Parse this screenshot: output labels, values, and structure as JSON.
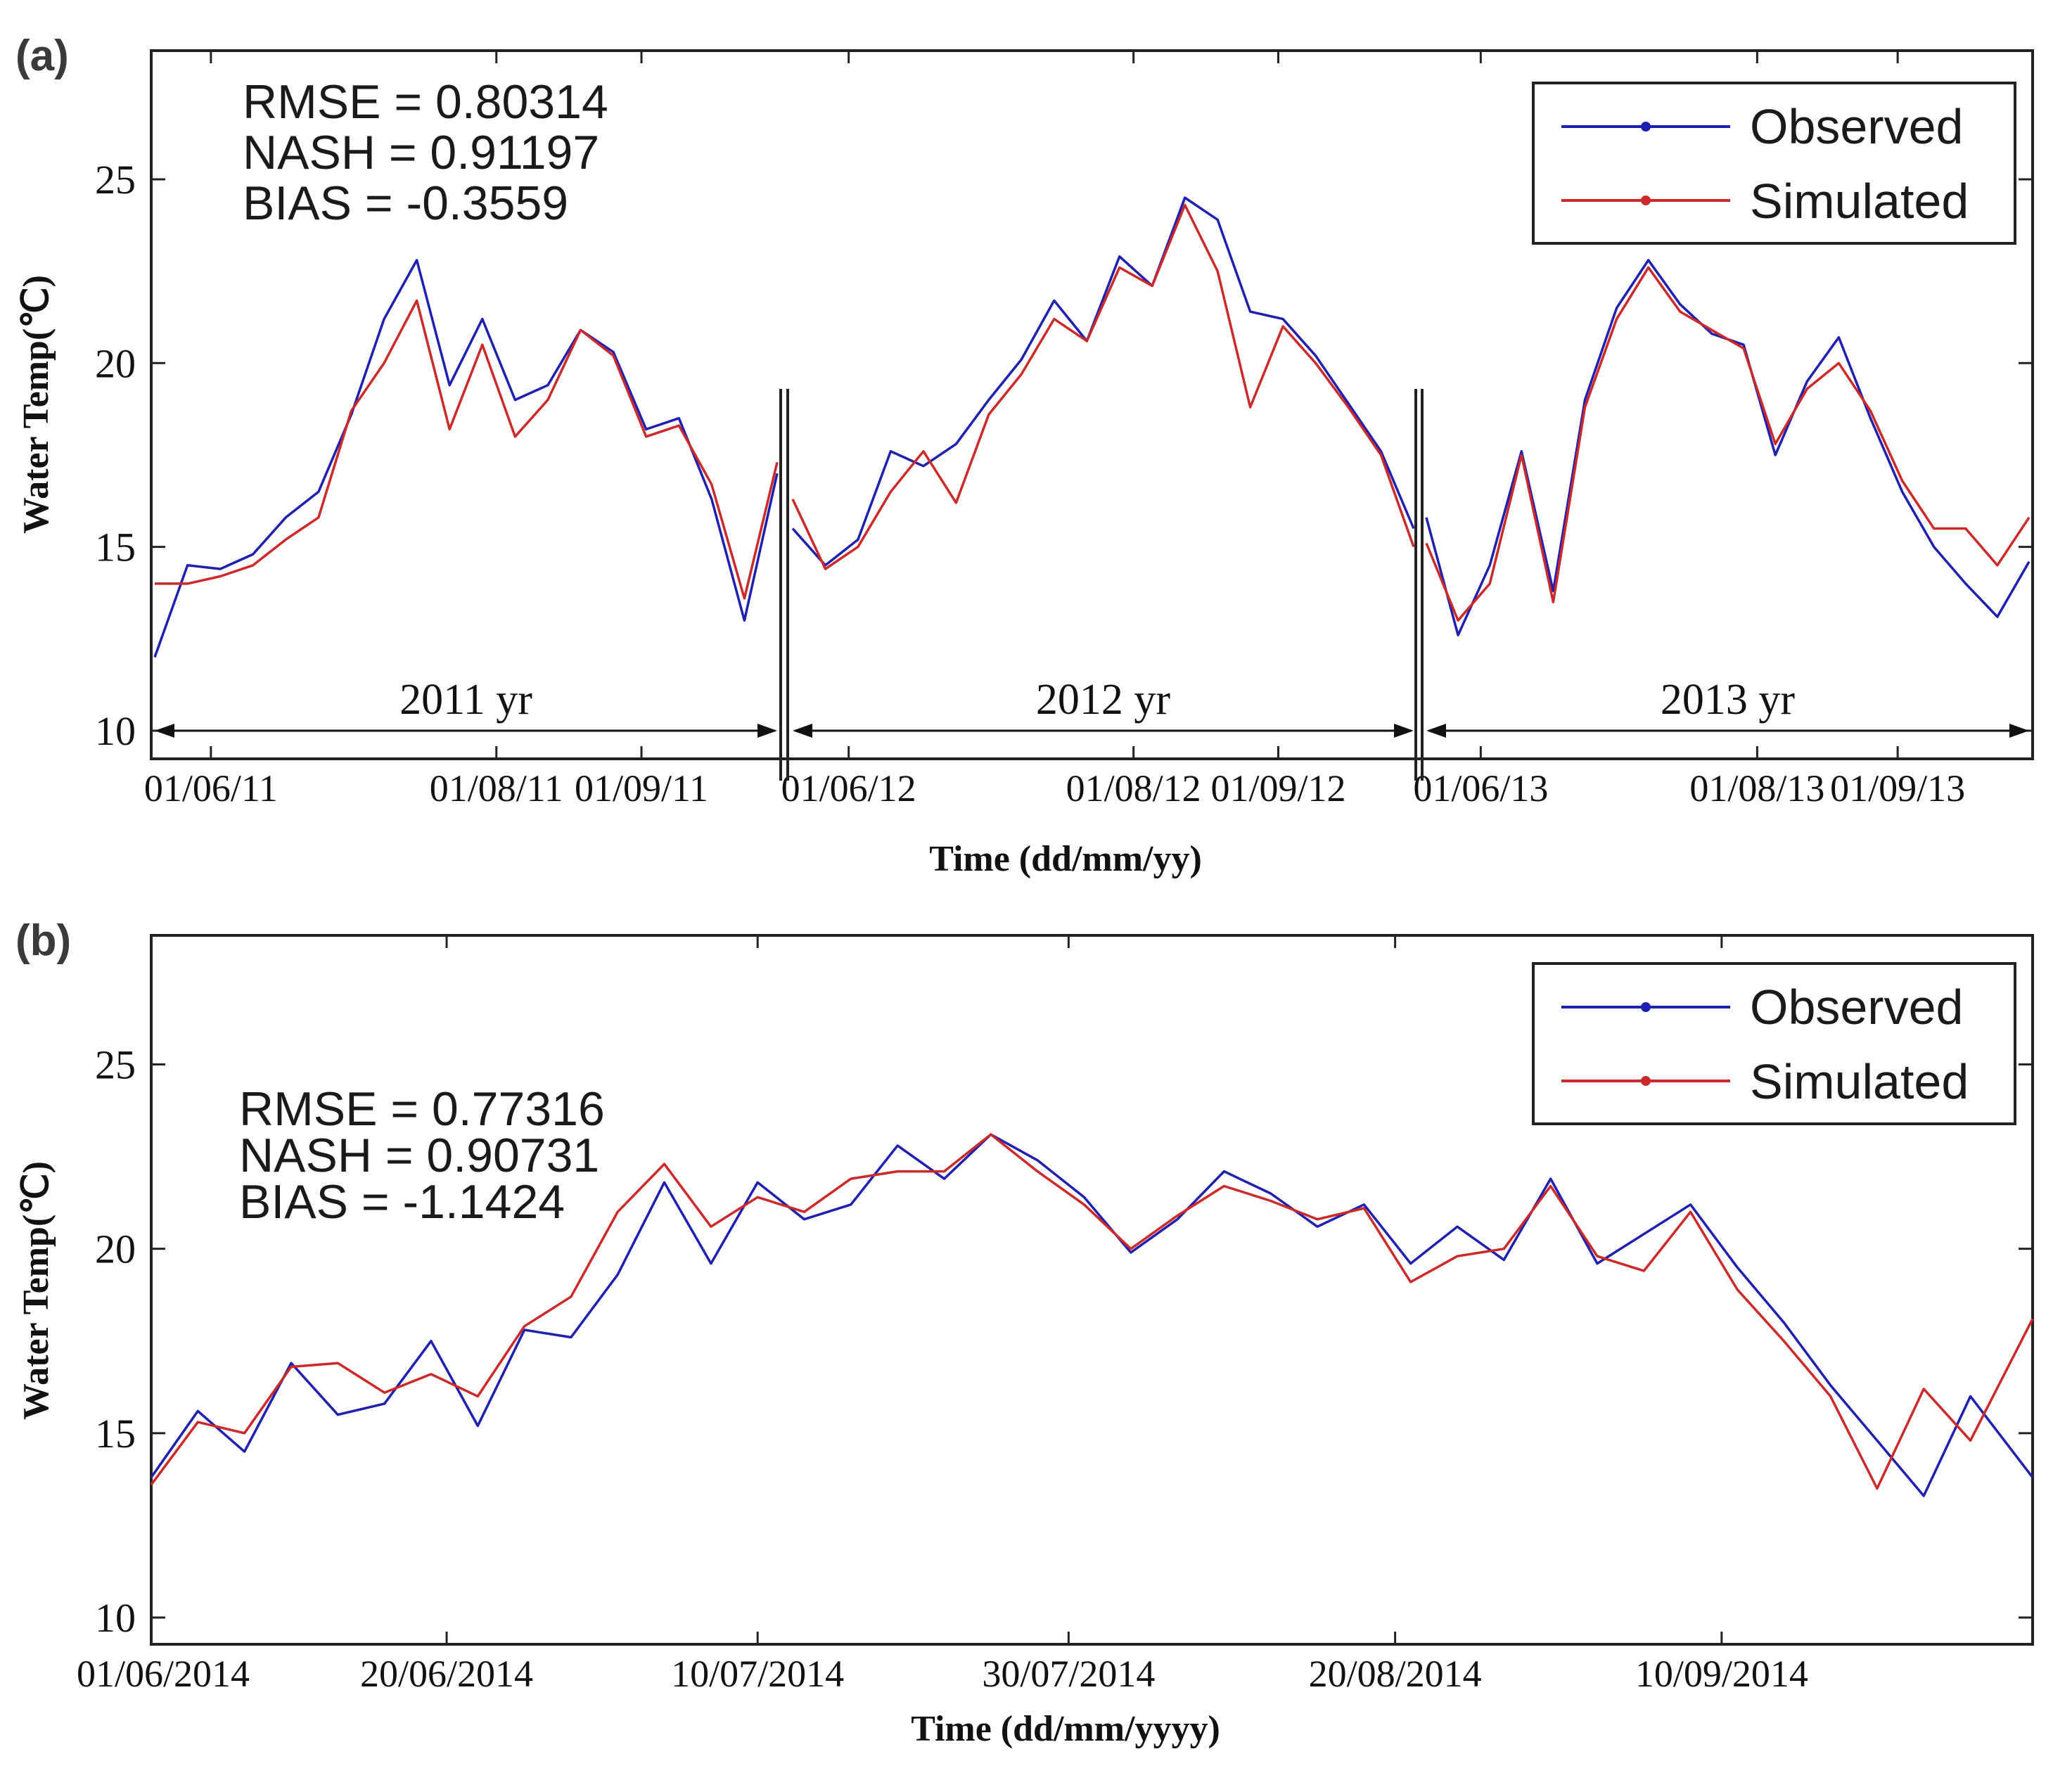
{
  "chart_data": [
    {
      "panel_label": "(a)",
      "type": "line",
      "xlabel": "Time (dd/mm/yy)",
      "ylabel": "Water Temp(℃)",
      "ylim": [
        10,
        28.5
      ],
      "yticks": [
        10,
        15,
        20,
        25
      ],
      "stats": [
        "RMSE = 0.80314",
        "NASH = 0.91197",
        "BIAS = -0.3559"
      ],
      "legend": {
        "position": "top-right",
        "entries": [
          "Observed",
          "Simulated"
        ]
      },
      "colors": {
        "observed": "#1f1fb0",
        "simulated": "#cc2a2a"
      },
      "segments": [
        {
          "year_label": "2011 yr",
          "xlim": [
            "2011-05-20",
            "2011-09-30"
          ],
          "ticks": [
            "01/06/11",
            "01/08/11",
            "01/09/11"
          ],
          "tick_dates": [
            "2011-06-01",
            "2011-08-01",
            "2011-09-01"
          ],
          "series": [
            {
              "name": "Observed",
              "dates": [
                "2011-05-20",
                "2011-05-27",
                "2011-06-03",
                "2011-06-10",
                "2011-06-17",
                "2011-06-24",
                "2011-07-01",
                "2011-07-08",
                "2011-07-15",
                "2011-07-22",
                "2011-07-29",
                "2011-08-05",
                "2011-08-12",
                "2011-08-19",
                "2011-08-26",
                "2011-09-02",
                "2011-09-09",
                "2011-09-16",
                "2011-09-23",
                "2011-09-30"
              ],
              "values": [
                12.0,
                14.5,
                14.4,
                14.8,
                15.8,
                16.5,
                18.6,
                21.2,
                22.8,
                19.4,
                21.2,
                19.0,
                19.4,
                20.9,
                20.3,
                18.2,
                18.5,
                16.3,
                13.0,
                17.0
              ]
            },
            {
              "name": "Simulated",
              "dates": [
                "2011-05-20",
                "2011-05-27",
                "2011-06-03",
                "2011-06-10",
                "2011-06-17",
                "2011-06-24",
                "2011-07-01",
                "2011-07-08",
                "2011-07-15",
                "2011-07-22",
                "2011-07-29",
                "2011-08-05",
                "2011-08-12",
                "2011-08-19",
                "2011-08-26",
                "2011-09-02",
                "2011-09-09",
                "2011-09-16",
                "2011-09-23",
                "2011-09-30"
              ],
              "values": [
                14.0,
                14.0,
                14.2,
                14.5,
                15.2,
                15.8,
                18.7,
                20.0,
                21.7,
                18.2,
                20.5,
                18.0,
                19.0,
                20.9,
                20.2,
                18.0,
                18.3,
                16.7,
                13.6,
                17.3
              ]
            }
          ]
        },
        {
          "year_label": "2012 yr",
          "xlim": [
            "2012-05-20",
            "2012-09-30"
          ],
          "ticks": [
            "01/06/12",
            "01/08/12",
            "01/09/12"
          ],
          "tick_dates": [
            "2012-06-01",
            "2012-08-01",
            "2012-09-01"
          ],
          "series": [
            {
              "name": "Observed",
              "dates": [
                "2012-05-20",
                "2012-05-27",
                "2012-06-03",
                "2012-06-10",
                "2012-06-17",
                "2012-06-24",
                "2012-07-01",
                "2012-07-08",
                "2012-07-15",
                "2012-07-22",
                "2012-07-29",
                "2012-08-05",
                "2012-08-12",
                "2012-08-19",
                "2012-08-26",
                "2012-09-02",
                "2012-09-09",
                "2012-09-16",
                "2012-09-23",
                "2012-09-30"
              ],
              "values": [
                15.5,
                14.5,
                15.2,
                17.6,
                17.2,
                17.8,
                19.0,
                20.1,
                21.7,
                20.6,
                22.9,
                22.1,
                24.5,
                23.9,
                21.4,
                21.2,
                20.2,
                18.9,
                17.6,
                15.5
              ]
            },
            {
              "name": "Simulated",
              "dates": [
                "2012-05-20",
                "2012-05-27",
                "2012-06-03",
                "2012-06-10",
                "2012-06-17",
                "2012-06-24",
                "2012-07-01",
                "2012-07-08",
                "2012-07-15",
                "2012-07-22",
                "2012-07-29",
                "2012-08-05",
                "2012-08-12",
                "2012-08-19",
                "2012-08-26",
                "2012-09-02",
                "2012-09-09",
                "2012-09-16",
                "2012-09-23",
                "2012-09-30"
              ],
              "values": [
                16.3,
                14.4,
                15.0,
                16.5,
                17.6,
                16.2,
                18.6,
                19.7,
                21.2,
                20.6,
                22.6,
                22.1,
                24.3,
                22.5,
                18.8,
                21.0,
                20.0,
                18.8,
                17.5,
                15.0
              ]
            }
          ]
        },
        {
          "year_label": "2013 yr",
          "xlim": [
            "2013-05-20",
            "2013-09-30"
          ],
          "ticks": [
            "01/06/13",
            "01/08/13",
            "01/09/13"
          ],
          "tick_dates": [
            "2013-06-01",
            "2013-08-01",
            "2013-09-01"
          ],
          "series": [
            {
              "name": "Observed",
              "dates": [
                "2013-05-20",
                "2013-05-27",
                "2013-06-03",
                "2013-06-10",
                "2013-06-17",
                "2013-06-24",
                "2013-07-01",
                "2013-07-08",
                "2013-07-15",
                "2013-07-22",
                "2013-07-29",
                "2013-08-05",
                "2013-08-12",
                "2013-08-19",
                "2013-08-26",
                "2013-09-02",
                "2013-09-09",
                "2013-09-16",
                "2013-09-23",
                "2013-09-30"
              ],
              "values": [
                15.8,
                12.6,
                14.5,
                17.6,
                13.8,
                19.0,
                21.5,
                22.8,
                21.6,
                20.8,
                20.5,
                17.5,
                19.5,
                20.7,
                18.5,
                16.5,
                15.0,
                14.0,
                13.1,
                14.6
              ]
            },
            {
              "name": "Simulated",
              "dates": [
                "2013-05-20",
                "2013-05-27",
                "2013-06-03",
                "2013-06-10",
                "2013-06-17",
                "2013-06-24",
                "2013-07-01",
                "2013-07-08",
                "2013-07-15",
                "2013-07-22",
                "2013-07-29",
                "2013-08-05",
                "2013-08-12",
                "2013-08-19",
                "2013-08-26",
                "2013-09-02",
                "2013-09-09",
                "2013-09-16",
                "2013-09-23",
                "2013-09-30"
              ],
              "values": [
                15.1,
                13.0,
                14.0,
                17.5,
                13.5,
                18.8,
                21.2,
                22.6,
                21.4,
                20.9,
                20.4,
                17.8,
                19.3,
                20.0,
                18.7,
                16.8,
                15.5,
                15.5,
                14.5,
                15.8
              ]
            }
          ]
        }
      ]
    },
    {
      "panel_label": "(b)",
      "type": "line",
      "xlabel": "Time (dd/mm/yyyy)",
      "ylabel": "Water Temp(℃)",
      "ylim": [
        10,
        28.5
      ],
      "yticks": [
        10,
        15,
        20,
        25
      ],
      "xlim": [
        "2014-06-01",
        "2014-09-30"
      ],
      "ticks": [
        "01/06/2014",
        "20/06/2014",
        "10/07/2014",
        "30/07/2014",
        "20/08/2014",
        "10/09/2014"
      ],
      "tick_dates": [
        "2014-06-01",
        "2014-06-20",
        "2014-07-10",
        "2014-07-30",
        "2014-08-20",
        "2014-09-10"
      ],
      "stats": [
        "RMSE = 0.77316",
        "NASH = 0.90731",
        "BIAS = -1.1424"
      ],
      "legend": {
        "position": "top-right",
        "entries": [
          "Observed",
          "Simulated"
        ]
      },
      "colors": {
        "observed": "#1f1fb0",
        "simulated": "#cc2a2a"
      },
      "series": [
        {
          "name": "Observed",
          "dates": [
            "2014-06-01",
            "2014-06-04",
            "2014-06-07",
            "2014-06-10",
            "2014-06-13",
            "2014-06-16",
            "2014-06-19",
            "2014-06-22",
            "2014-06-25",
            "2014-06-28",
            "2014-07-01",
            "2014-07-04",
            "2014-07-07",
            "2014-07-10",
            "2014-07-13",
            "2014-07-16",
            "2014-07-19",
            "2014-07-22",
            "2014-07-25",
            "2014-07-28",
            "2014-07-31",
            "2014-08-03",
            "2014-08-06",
            "2014-08-09",
            "2014-08-12",
            "2014-08-15",
            "2014-08-18",
            "2014-08-21",
            "2014-08-24",
            "2014-08-27",
            "2014-08-30",
            "2014-09-02",
            "2014-09-05",
            "2014-09-08",
            "2014-09-11",
            "2014-09-14",
            "2014-09-17",
            "2014-09-20",
            "2014-09-23",
            "2014-09-26",
            "2014-09-30"
          ],
          "values": [
            13.8,
            15.6,
            14.5,
            16.9,
            15.5,
            15.8,
            17.5,
            15.2,
            17.8,
            17.6,
            19.3,
            21.8,
            19.6,
            21.8,
            20.8,
            21.2,
            22.8,
            21.9,
            23.1,
            22.4,
            21.4,
            19.9,
            20.8,
            22.1,
            21.5,
            20.6,
            21.2,
            19.6,
            20.6,
            19.7,
            21.9,
            19.6,
            20.4,
            21.2,
            19.5,
            18.0,
            16.3,
            14.8,
            13.3,
            16.0,
            13.8
          ]
        },
        {
          "name": "Simulated",
          "dates": [
            "2014-06-01",
            "2014-06-04",
            "2014-06-07",
            "2014-06-10",
            "2014-06-13",
            "2014-06-16",
            "2014-06-19",
            "2014-06-22",
            "2014-06-25",
            "2014-06-28",
            "2014-07-01",
            "2014-07-04",
            "2014-07-07",
            "2014-07-10",
            "2014-07-13",
            "2014-07-16",
            "2014-07-19",
            "2014-07-22",
            "2014-07-25",
            "2014-07-28",
            "2014-07-31",
            "2014-08-03",
            "2014-08-06",
            "2014-08-09",
            "2014-08-12",
            "2014-08-15",
            "2014-08-18",
            "2014-08-21",
            "2014-08-24",
            "2014-08-27",
            "2014-08-30",
            "2014-09-02",
            "2014-09-05",
            "2014-09-08",
            "2014-09-11",
            "2014-09-14",
            "2014-09-17",
            "2014-09-20",
            "2014-09-23",
            "2014-09-26",
            "2014-09-30"
          ],
          "values": [
            13.6,
            15.3,
            15.0,
            16.8,
            16.9,
            16.1,
            16.6,
            16.0,
            17.9,
            18.7,
            21.0,
            22.3,
            20.6,
            21.4,
            21.0,
            21.9,
            22.1,
            22.1,
            23.1,
            22.1,
            21.2,
            20.0,
            20.9,
            21.7,
            21.3,
            20.8,
            21.1,
            19.1,
            19.8,
            20.0,
            21.7,
            19.8,
            19.4,
            21.0,
            18.9,
            17.5,
            16.0,
            13.5,
            16.2,
            14.8,
            18.1
          ]
        }
      ]
    }
  ]
}
